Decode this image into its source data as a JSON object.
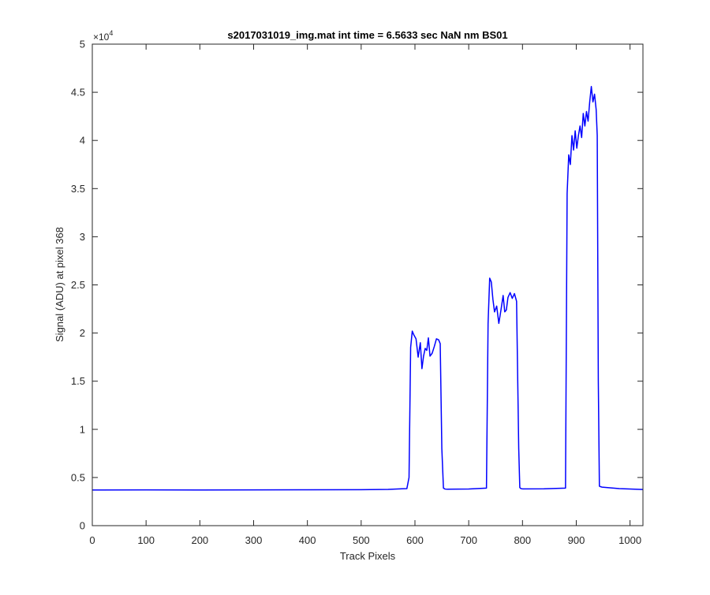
{
  "chart_data": {
    "type": "line",
    "title": "s2017031019_img.mat int time = 6.5633 sec  NaN nm BS01",
    "xlabel": "Track Pixels",
    "ylabel": "Signal (ADU) at pixel 368",
    "y_exponent_label": "×10",
    "y_exponent_power": "4",
    "y_scale_factor": 10000,
    "xlim": [
      0,
      1024
    ],
    "ylim": [
      0,
      5
    ],
    "xticks": [
      0,
      100,
      200,
      300,
      400,
      500,
      600,
      700,
      800,
      900,
      1000
    ],
    "xtick_labels": [
      "0",
      "100",
      "200",
      "300",
      "400",
      "500",
      "600",
      "700",
      "800",
      "900",
      "1000"
    ],
    "yticks": [
      0,
      0.5,
      1,
      1.5,
      2,
      2.5,
      3,
      3.5,
      4,
      4.5,
      5
    ],
    "ytick_labels": [
      "0",
      "0.5",
      "1",
      "1.5",
      "2",
      "2.5",
      "3",
      "3.5",
      "4",
      "4.5",
      "5"
    ],
    "grid": false,
    "line_color": "#0000ff",
    "series": [
      {
        "x": [
          0,
          100,
          200,
          300,
          400,
          500,
          550,
          585,
          589,
          592,
          595,
          598,
          602,
          606,
          610,
          613,
          616,
          619,
          622,
          625,
          628,
          632,
          636,
          640,
          644,
          647,
          650,
          653,
          656,
          660,
          700,
          733,
          736,
          739,
          742,
          745,
          748,
          752,
          756,
          760,
          764,
          767,
          770,
          773,
          777,
          781,
          785,
          789,
          793,
          795,
          797,
          800,
          840,
          880,
          883,
          886,
          889,
          892,
          895,
          898,
          901,
          904,
          907,
          910,
          913,
          916,
          919,
          922,
          925,
          928,
          931,
          934,
          937,
          939,
          941,
          943,
          945,
          948,
          980,
          1024
        ],
        "y": [
          3700,
          3710,
          3700,
          3710,
          3720,
          3730,
          3760,
          3850,
          5000,
          18500,
          20200,
          19800,
          19400,
          17500,
          19000,
          16300,
          17600,
          18400,
          18200,
          19500,
          17600,
          17900,
          18600,
          19400,
          19300,
          18900,
          8000,
          3900,
          3800,
          3780,
          3800,
          3900,
          21000,
          25700,
          25300,
          23500,
          22200,
          22800,
          21000,
          22400,
          23900,
          22200,
          22400,
          23700,
          24200,
          23600,
          24100,
          23300,
          8000,
          3950,
          3850,
          3820,
          3830,
          3900,
          34500,
          38500,
          37500,
          40500,
          39000,
          41000,
          39200,
          40500,
          41500,
          40300,
          42800,
          41500,
          43000,
          42000,
          44000,
          45600,
          44000,
          44800,
          43200,
          40500,
          15000,
          4100,
          4050,
          4000,
          3850,
          3750
        ]
      }
    ]
  }
}
